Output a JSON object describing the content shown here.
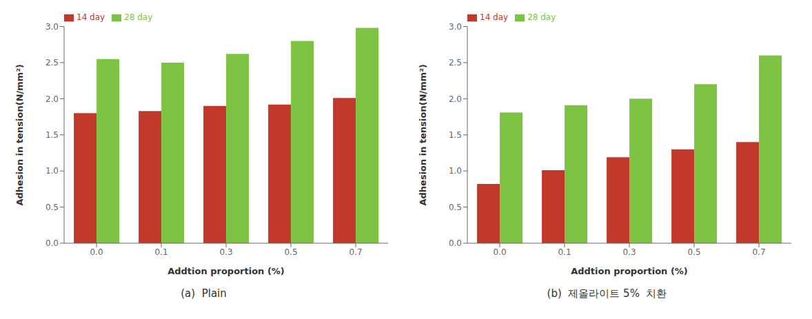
{
  "chart_data": [
    {
      "type": "bar",
      "title": "(a)  Plain",
      "categories": [
        "0.0",
        "0.1",
        "0.3",
        "0.5",
        "0.7"
      ],
      "series": [
        {
          "name": "14 day",
          "color": "#c0392b",
          "values": [
            1.8,
            1.83,
            1.9,
            1.92,
            2.01
          ]
        },
        {
          "name": "28 day",
          "color": "#7dc242",
          "values": [
            2.55,
            2.5,
            2.62,
            2.8,
            2.98
          ]
        }
      ],
      "xlabel": "Addtion proportion (%)",
      "ylabel": "Adhesion in tension(N/mm²)",
      "ylim": [
        0.0,
        3.0
      ],
      "yticks": [
        {
          "value": 0.0,
          "label": "0.0"
        },
        0.5,
        {
          "value": 1.0,
          "label": "1.0"
        },
        1.5,
        {
          "value": 2.0,
          "label": "2.0"
        },
        2.5,
        {
          "value": 3.0,
          "label": "3.0"
        }
      ],
      "legend": "upper left",
      "grid": false
    },
    {
      "type": "bar",
      "title": "(b)  제올라이트 5%  치환",
      "categories": [
        "0.0",
        "0.1",
        "0.3",
        "0.5",
        "0.7"
      ],
      "series": [
        {
          "name": "14 day",
          "color": "#c0392b",
          "values": [
            0.82,
            1.01,
            1.19,
            1.3,
            1.4
          ]
        },
        {
          "name": "28 day",
          "color": "#7dc242",
          "values": [
            1.81,
            1.91,
            2.0,
            2.2,
            2.6
          ]
        }
      ],
      "xlabel": "Addtion proportion (%)",
      "ylabel": "Adhesion in tension(N/mm²)",
      "ylim": [
        0.0,
        3.0
      ],
      "yticks": [
        {
          "value": 0.0,
          "label": "0.0"
        },
        0.5,
        {
          "value": 1.0,
          "label": "1.0"
        },
        1.5,
        {
          "value": 2.0,
          "label": "2.0"
        },
        2.5,
        {
          "value": 3.0,
          "label": "3.0"
        }
      ],
      "legend": "upper left",
      "grid": false
    }
  ]
}
